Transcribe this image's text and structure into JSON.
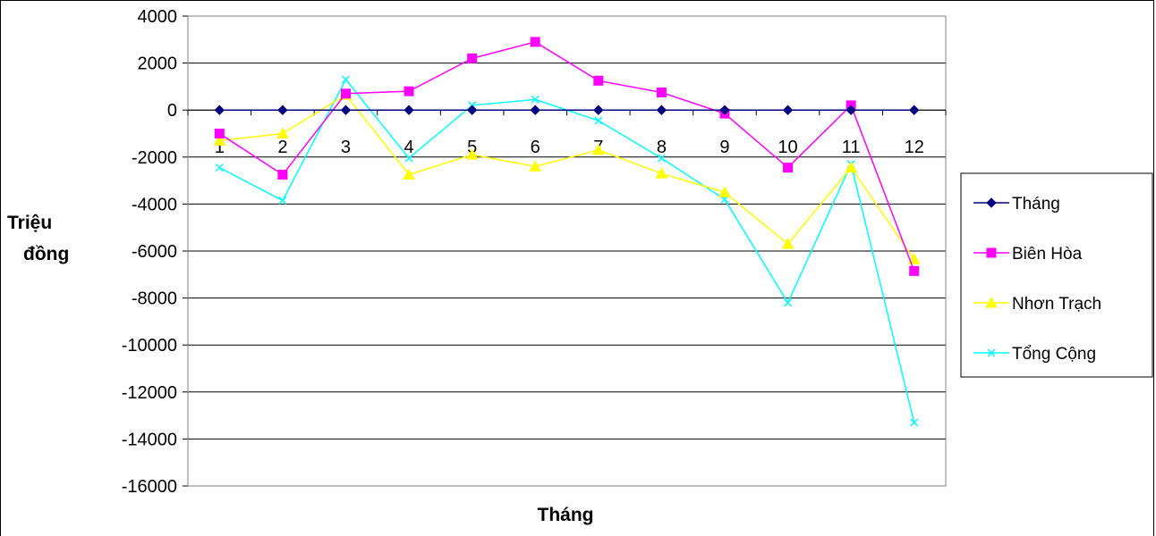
{
  "chart_data": {
    "type": "line",
    "title": "",
    "xlabel": "Tháng",
    "ylabel": "Triệu đồng",
    "ylim": [
      -16000,
      4000
    ],
    "ytick_step": 2000,
    "grid": "horizontal",
    "legend_position": "right",
    "categories": [
      "1",
      "2",
      "3",
      "4",
      "5",
      "6",
      "7",
      "8",
      "9",
      "10",
      "11",
      "12"
    ],
    "series": [
      {
        "name": "Tháng",
        "color": "#000080",
        "marker": "diamond",
        "values": [
          0,
          0,
          0,
          0,
          0,
          0,
          0,
          0,
          0,
          0,
          0,
          0
        ]
      },
      {
        "name": "Biên Hòa",
        "color": "#FF00FF",
        "marker": "square",
        "values": [
          -1000,
          -2750,
          700,
          800,
          2200,
          2900,
          1250,
          750,
          -150,
          -2450,
          200,
          -6850
        ]
      },
      {
        "name": "Nhơn Trạch",
        "color": "#FFFF00",
        "marker": "triangle",
        "values": [
          -1300,
          -1000,
          650,
          -2750,
          -1900,
          -2400,
          -1700,
          -2700,
          -3500,
          -5700,
          -2450,
          -6350
        ]
      },
      {
        "name": "Tổng Cộng",
        "color": "#00FFFF",
        "marker": "x",
        "values": [
          -2450,
          -3850,
          1300,
          -2050,
          200,
          450,
          -450,
          -2050,
          -3800,
          -8200,
          -2300,
          -13300
        ]
      }
    ]
  }
}
